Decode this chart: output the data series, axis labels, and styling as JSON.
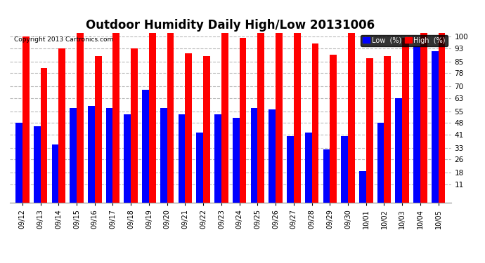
{
  "title": "Outdoor Humidity Daily High/Low 20131006",
  "copyright": "Copyright 2013 Cartronics.com",
  "categories": [
    "09/12",
    "09/13",
    "09/14",
    "09/15",
    "09/16",
    "09/17",
    "09/18",
    "09/19",
    "09/20",
    "09/21",
    "09/22",
    "09/23",
    "09/24",
    "09/25",
    "09/26",
    "09/27",
    "09/28",
    "09/29",
    "09/30",
    "10/01",
    "10/02",
    "10/03",
    "10/04",
    "10/05"
  ],
  "high": [
    100,
    81,
    93,
    102,
    88,
    102,
    93,
    102,
    102,
    90,
    88,
    102,
    99,
    102,
    102,
    102,
    96,
    89,
    102,
    87,
    88,
    99,
    102,
    102
  ],
  "low": [
    48,
    46,
    35,
    57,
    58,
    57,
    53,
    68,
    57,
    53,
    42,
    53,
    51,
    57,
    56,
    40,
    42,
    32,
    40,
    19,
    48,
    63,
    94,
    91
  ],
  "high_color": "#FF0000",
  "low_color": "#0000FF",
  "bg_color": "#FFFFFF",
  "plot_bg_color": "#FFFFFF",
  "grid_color": "#BBBBBB",
  "yticks": [
    11,
    18,
    26,
    33,
    41,
    48,
    55,
    63,
    70,
    78,
    85,
    93,
    100
  ],
  "ylim": [
    0,
    103
  ],
  "ymin": 11,
  "title_fontsize": 12,
  "axis_fontsize": 7.5,
  "tick_fontsize": 7,
  "legend_low_label": "Low  (%)",
  "legend_high_label": "High  (%)",
  "bar_width": 0.38
}
